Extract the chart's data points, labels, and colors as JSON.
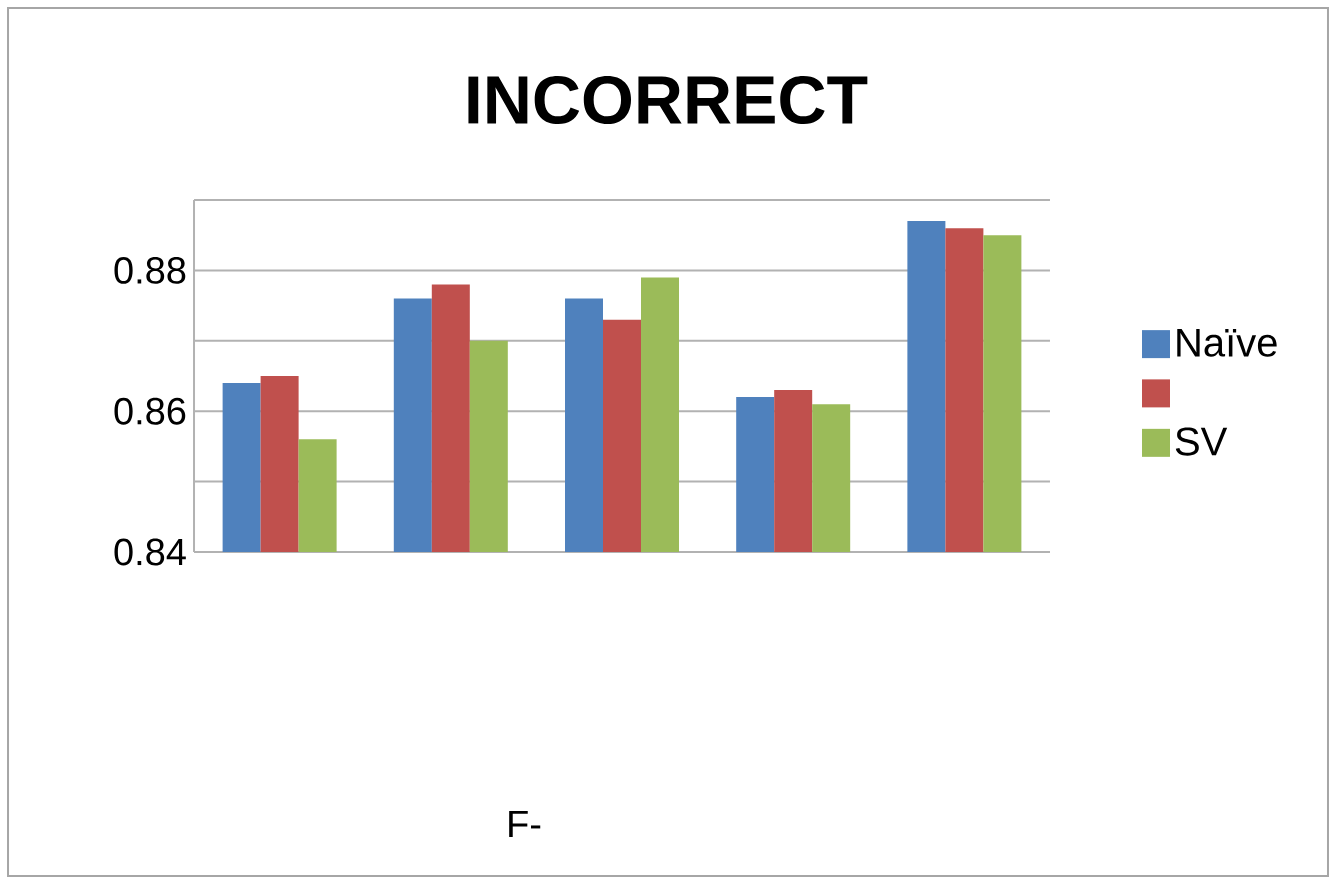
{
  "chart_data": {
    "type": "bar",
    "title": "INCORRECT",
    "annotations": [
      "F-"
    ],
    "categories": [
      null,
      null,
      null,
      null,
      null
    ],
    "series": [
      {
        "name": "Naïve",
        "color": "#4f81bd",
        "values": [
          0.864,
          0.876,
          0.876,
          0.862,
          0.887
        ]
      },
      {
        "color": "#c0504d",
        "values": [
          0.865,
          0.878,
          0.873,
          0.863,
          0.886
        ]
      },
      {
        "name": "SV",
        "color": "#9bbb59",
        "values": [
          0.856,
          0.87,
          0.879,
          0.861,
          0.885
        ]
      }
    ],
    "ylim": [
      0.84,
      0.89
    ],
    "yticks": [
      {
        "value": 0.84,
        "label": "0.84"
      },
      {
        "value": 0.85,
        "label": null
      },
      {
        "value": 0.86,
        "label": "0.86"
      },
      {
        "value": 0.87,
        "label": null
      },
      {
        "value": 0.88,
        "label": "0.88"
      },
      {
        "value": 0.89,
        "label": null
      }
    ],
    "grid": "y",
    "legend": "right"
  }
}
